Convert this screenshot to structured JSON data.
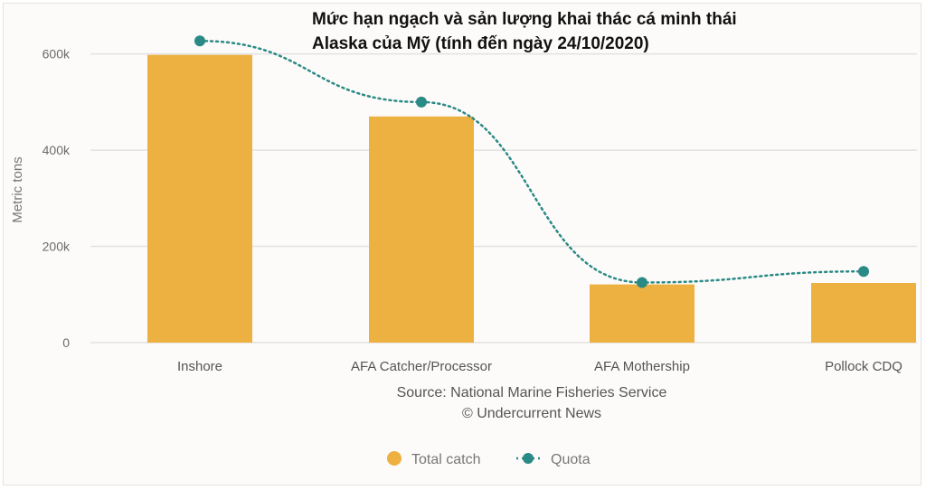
{
  "chart_data": {
    "type": "bar",
    "title_line1": "Mức hạn ngạch và sản lượng khai thác cá minh thái",
    "title_line2": "Alaska của Mỹ (tính đến ngày 24/10/2020)",
    "ylabel": "Metric tons",
    "categories": [
      "Inshore",
      "AFA Catcher/Processor",
      "AFA Mothership",
      "Pollock CDQ"
    ],
    "series": [
      {
        "name": "Total catch",
        "type": "bar",
        "values": [
          598000,
          470000,
          121000,
          124000
        ]
      },
      {
        "name": "Quota",
        "type": "line",
        "values": [
          627000,
          500000,
          125000,
          148000
        ]
      }
    ],
    "ylim": [
      0,
      620000
    ],
    "yticks": [
      {
        "value": 0,
        "label": "0"
      },
      {
        "value": 200000,
        "label": "200k"
      },
      {
        "value": 400000,
        "label": "400k"
      },
      {
        "value": 600000,
        "label": "600k"
      }
    ],
    "source_line1": "Source: National Marine Fisheries Service",
    "source_line2": "© Undercurrent News",
    "legend": [
      "Total catch",
      "Quota"
    ],
    "grid": true,
    "legend_position": "bottom-center",
    "colors": {
      "bar": "#edb142",
      "quota": "#2a8a86",
      "grid": "#e3e1e1"
    }
  }
}
